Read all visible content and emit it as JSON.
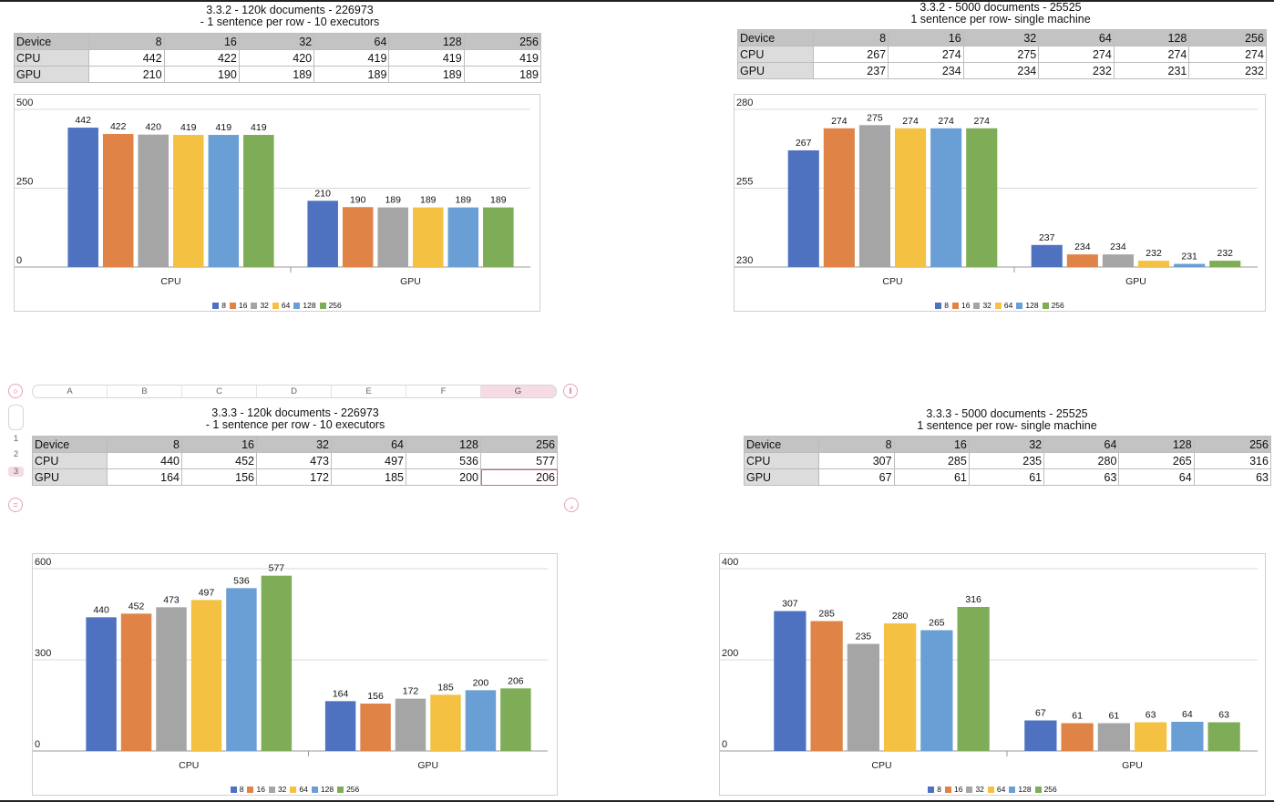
{
  "legend_keys": [
    "8",
    "16",
    "32",
    "64",
    "128",
    "256"
  ],
  "series_colors": [
    "#4e72c0",
    "#df8347",
    "#a5a5a5",
    "#f4c143",
    "#6a9fd6",
    "#7eac57"
  ],
  "spreadsheet": {
    "columns": [
      "A",
      "B",
      "C",
      "D",
      "E",
      "F",
      "G"
    ],
    "rows": [
      "1",
      "2",
      "3"
    ],
    "selected_column": "G",
    "selected_row": "3",
    "controls": [
      "circle-handle",
      "pause-handle",
      "equal-handle",
      "corner-handle"
    ]
  },
  "panels": [
    {
      "title_line1": "3.3.2 - 120k documents - 226973",
      "title_line2": "- 1 sentence per row - 10 executors",
      "table": {
        "header": [
          "Device",
          "8",
          "16",
          "32",
          "64",
          "128",
          "256"
        ],
        "rows": [
          [
            "CPU",
            "442",
            "422",
            "420",
            "419",
            "419",
            "419"
          ],
          [
            "GPU",
            "210",
            "190",
            "189",
            "189",
            "189",
            "189"
          ]
        ]
      }
    },
    {
      "title_line1": "3.3.2 - 5000 documents - 25525",
      "title_line2": "1 sentence per row- single machine",
      "table": {
        "header": [
          "Device",
          "8",
          "16",
          "32",
          "64",
          "128",
          "256"
        ],
        "rows": [
          [
            "CPU",
            "267",
            "274",
            "275",
            "274",
            "274",
            "274"
          ],
          [
            "GPU",
            "237",
            "234",
            "234",
            "232",
            "231",
            "232"
          ]
        ]
      }
    },
    {
      "title_line1": "3.3.3 - 120k documents - 226973",
      "title_line2": "- 1 sentence per row - 10 executors",
      "table": {
        "header": [
          "Device",
          "8",
          "16",
          "32",
          "64",
          "128",
          "256"
        ],
        "rows": [
          [
            "CPU",
            "440",
            "452",
            "473",
            "497",
            "536",
            "577"
          ],
          [
            "GPU",
            "164",
            "156",
            "172",
            "185",
            "200",
            "206"
          ]
        ]
      }
    },
    {
      "title_line1": "3.3.3 - 5000 documents - 25525",
      "title_line2": "1 sentence per row- single machine",
      "table": {
        "header": [
          "Device",
          "8",
          "16",
          "32",
          "64",
          "128",
          "256"
        ],
        "rows": [
          [
            "CPU",
            "307",
            "285",
            "235",
            "280",
            "265",
            "316"
          ],
          [
            "GPU",
            "67",
            "61",
            "61",
            "63",
            "64",
            "63"
          ]
        ]
      }
    }
  ],
  "chart_data": [
    {
      "type": "bar",
      "categories": [
        "CPU",
        "GPU"
      ],
      "series": [
        {
          "name": "8",
          "values": [
            442,
            210
          ]
        },
        {
          "name": "16",
          "values": [
            422,
            190
          ]
        },
        {
          "name": "32",
          "values": [
            420,
            189
          ]
        },
        {
          "name": "64",
          "values": [
            419,
            189
          ]
        },
        {
          "name": "128",
          "values": [
            419,
            189
          ]
        },
        {
          "name": "256",
          "values": [
            419,
            189
          ]
        }
      ],
      "ylim": [
        0,
        500
      ],
      "yticks": [
        0,
        250,
        500
      ],
      "grid": true,
      "legend": "bottom"
    },
    {
      "type": "bar",
      "categories": [
        "CPU",
        "GPU"
      ],
      "series": [
        {
          "name": "8",
          "values": [
            267,
            237
          ]
        },
        {
          "name": "16",
          "values": [
            274,
            234
          ]
        },
        {
          "name": "32",
          "values": [
            275,
            234
          ]
        },
        {
          "name": "64",
          "values": [
            274,
            232
          ]
        },
        {
          "name": "128",
          "values": [
            274,
            231
          ]
        },
        {
          "name": "256",
          "values": [
            274,
            232
          ]
        }
      ],
      "ylim": [
        230,
        280
      ],
      "yticks": [
        230,
        255,
        280
      ],
      "grid": true,
      "legend": "bottom"
    },
    {
      "type": "bar",
      "categories": [
        "CPU",
        "GPU"
      ],
      "series": [
        {
          "name": "8",
          "values": [
            440,
            164
          ]
        },
        {
          "name": "16",
          "values": [
            452,
            156
          ]
        },
        {
          "name": "32",
          "values": [
            473,
            172
          ]
        },
        {
          "name": "64",
          "values": [
            497,
            185
          ]
        },
        {
          "name": "128",
          "values": [
            536,
            200
          ]
        },
        {
          "name": "256",
          "values": [
            577,
            206
          ]
        }
      ],
      "ylim": [
        0,
        600
      ],
      "yticks": [
        0,
        300,
        600
      ],
      "grid": true,
      "legend": "bottom"
    },
    {
      "type": "bar",
      "categories": [
        "CPU",
        "GPU"
      ],
      "series": [
        {
          "name": "8",
          "values": [
            307,
            67
          ]
        },
        {
          "name": "16",
          "values": [
            285,
            61
          ]
        },
        {
          "name": "32",
          "values": [
            235,
            61
          ]
        },
        {
          "name": "64",
          "values": [
            280,
            63
          ]
        },
        {
          "name": "128",
          "values": [
            265,
            64
          ]
        },
        {
          "name": "256",
          "values": [
            316,
            63
          ]
        }
      ],
      "ylim": [
        0,
        400
      ],
      "yticks": [
        0,
        200,
        400
      ],
      "grid": true,
      "legend": "bottom"
    }
  ]
}
